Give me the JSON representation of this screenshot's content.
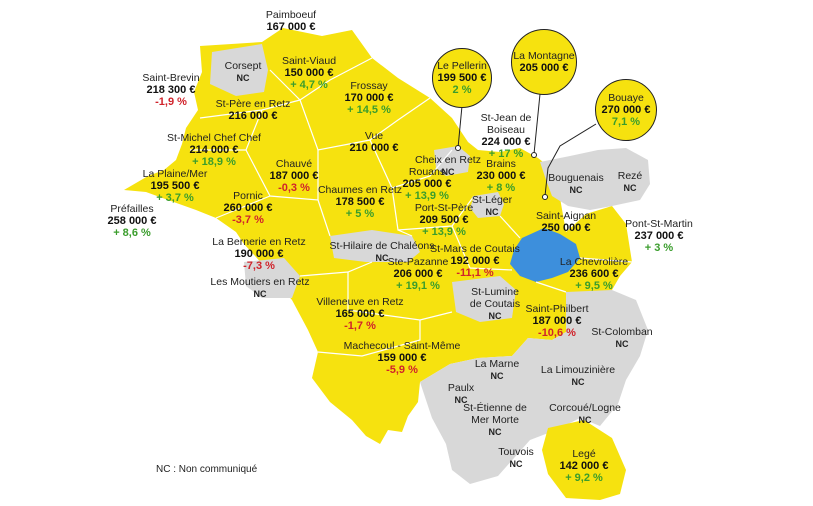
{
  "colors": {
    "communicated": "#f6e20f",
    "not_communicated": "#d8d8d8",
    "lake": "#3d8fdc",
    "increase": "#3a9d2c",
    "decrease": "#d0232b"
  },
  "legend": {
    "text": "NC : Non communiqué"
  },
  "communes": [
    {
      "id": "paimboeuf",
      "name": "Paimboeuf",
      "price": "167 000 €",
      "change": ""
    },
    {
      "id": "corsept",
      "name": "Corsept",
      "price": "",
      "change": "",
      "nc": "NC"
    },
    {
      "id": "saint-viaud",
      "name": "Saint-Viaud",
      "price": "150 000 €",
      "change": "+ 4,7 %"
    },
    {
      "id": "saint-brevin",
      "name": "Saint-Brevin",
      "price": "218 300 €",
      "change": "-1,9 %"
    },
    {
      "id": "frossay",
      "name": "Frossay",
      "price": "170 000 €",
      "change": "+ 14,5 %"
    },
    {
      "id": "st-pere-en-retz",
      "name": "St-Père en Retz",
      "price": "216 000 €",
      "change": ""
    },
    {
      "id": "st-michel-chef-chef",
      "name": "St-Michel Chef Chef",
      "price": "214 000 €",
      "change": "+ 18,9 %"
    },
    {
      "id": "vue",
      "name": "Vue",
      "price": "210 000 €",
      "change": ""
    },
    {
      "id": "st-jean-de-boiseau",
      "name": "St-Jean de Boiseau",
      "price": "224 000 €",
      "change": "+ 17 %"
    },
    {
      "id": "cheix-en-retz",
      "name": "Cheix en Retz",
      "price": "",
      "change": "",
      "nc": "NC"
    },
    {
      "id": "chauve",
      "name": "Chauvé",
      "price": "187 000 €",
      "change": "-0,3 %"
    },
    {
      "id": "brains",
      "name": "Brains",
      "price": "230 000 €",
      "change": "+ 8 %"
    },
    {
      "id": "la-plaine-mer",
      "name": "La Plaine/Mer",
      "price": "195 500 €",
      "change": "+ 3,7 %"
    },
    {
      "id": "rouans",
      "name": "Rouans",
      "price": "205 000 €",
      "change": "+ 13,9 %"
    },
    {
      "id": "bouguenais",
      "name": "Bouguenais",
      "price": "",
      "change": "",
      "nc": "NC"
    },
    {
      "id": "reze",
      "name": "Rezé",
      "price": "",
      "change": "",
      "nc": "NC"
    },
    {
      "id": "prefailles",
      "name": "Préfailles",
      "price": "258 000 €",
      "change": "+ 8,6 %"
    },
    {
      "id": "pornic",
      "name": "Pornic",
      "price": "260 000 €",
      "change": "-3,7 %"
    },
    {
      "id": "chaumes-en-retz",
      "name": "Chaumes en Retz",
      "price": "178 500 €",
      "change": "+ 5 %"
    },
    {
      "id": "st-leger",
      "name": "St-Léger",
      "price": "",
      "change": "",
      "nc": "NC"
    },
    {
      "id": "port-st-pere",
      "name": "Port-St-Père",
      "price": "209 500 €",
      "change": "+ 13,9 %"
    },
    {
      "id": "saint-aignan",
      "name": "Saint-Aignan",
      "price": "250 000 €",
      "change": ""
    },
    {
      "id": "pont-st-martin",
      "name": "Pont-St-Martin",
      "price": "237 000 €",
      "change": "+ 3 %"
    },
    {
      "id": "la-bernerie-en-retz",
      "name": "La Bernerie en Retz",
      "price": "190 000 €",
      "change": "-7,3 %"
    },
    {
      "id": "st-hilaire-de-chaleons",
      "name": "St-Hilaire de Chaléons",
      "price": "",
      "change": "",
      "nc": "NC"
    },
    {
      "id": "st-mars-de-coutais",
      "name": "St-Mars de Coutais",
      "price": "192 000 €",
      "change": "-11,1 %"
    },
    {
      "id": "la-chevroliere",
      "name": "La Chevrolière",
      "price": "236 600 €",
      "change": "+ 9,5 %"
    },
    {
      "id": "ste-pazanne",
      "name": "Ste-Pazanne",
      "price": "206 000 €",
      "change": "+ 19,1 %"
    },
    {
      "id": "les-moutiers-en-retz",
      "name": "Les Moutiers en Retz",
      "price": "",
      "change": "",
      "nc": "NC"
    },
    {
      "id": "st-lumine-de-coutais",
      "name": "St-Lumine de Coutais",
      "price": "",
      "change": "",
      "nc": "NC"
    },
    {
      "id": "villeneuve-en-retz",
      "name": "Villeneuve en Retz",
      "price": "165 000 €",
      "change": "-1,7 %"
    },
    {
      "id": "saint-philbert",
      "name": "Saint-Philbert",
      "price": "187 000 €",
      "change": "-10,6 %"
    },
    {
      "id": "st-colomban",
      "name": "St-Colomban",
      "price": "",
      "change": "",
      "nc": "NC"
    },
    {
      "id": "machecoul-saint-meme",
      "name": "Machecoul - Saint-Même",
      "price": "159 000 €",
      "change": "-5,9 %"
    },
    {
      "id": "la-marne",
      "name": "La Marne",
      "price": "",
      "change": "",
      "nc": "NC"
    },
    {
      "id": "la-limouziniere",
      "name": "La Limouzinière",
      "price": "",
      "change": "",
      "nc": "NC"
    },
    {
      "id": "paulx",
      "name": "Paulx",
      "price": "",
      "change": "",
      "nc": "NC"
    },
    {
      "id": "st-etienne-de-mer-morte",
      "name": "St-Étienne de Mer Morte",
      "price": "",
      "change": "",
      "nc": "NC"
    },
    {
      "id": "corcoue-logne",
      "name": "Corcoué/Logne",
      "price": "",
      "change": "",
      "nc": "NC"
    },
    {
      "id": "touvois",
      "name": "Touvois",
      "price": "",
      "change": "",
      "nc": "NC"
    },
    {
      "id": "lege",
      "name": "Legé",
      "price": "142 000 €",
      "change": "+ 9,2 %"
    }
  ],
  "callouts": [
    {
      "id": "le-pellerin",
      "name": "Le Pellerin",
      "price": "199 500 €",
      "change": "2 %"
    },
    {
      "id": "la-montagne",
      "name": "La Montagne",
      "price": "205 000 €",
      "change": ""
    },
    {
      "id": "bouaye",
      "name": "Bouaye",
      "price": "270 000 €",
      "change": "7,1 %"
    }
  ]
}
